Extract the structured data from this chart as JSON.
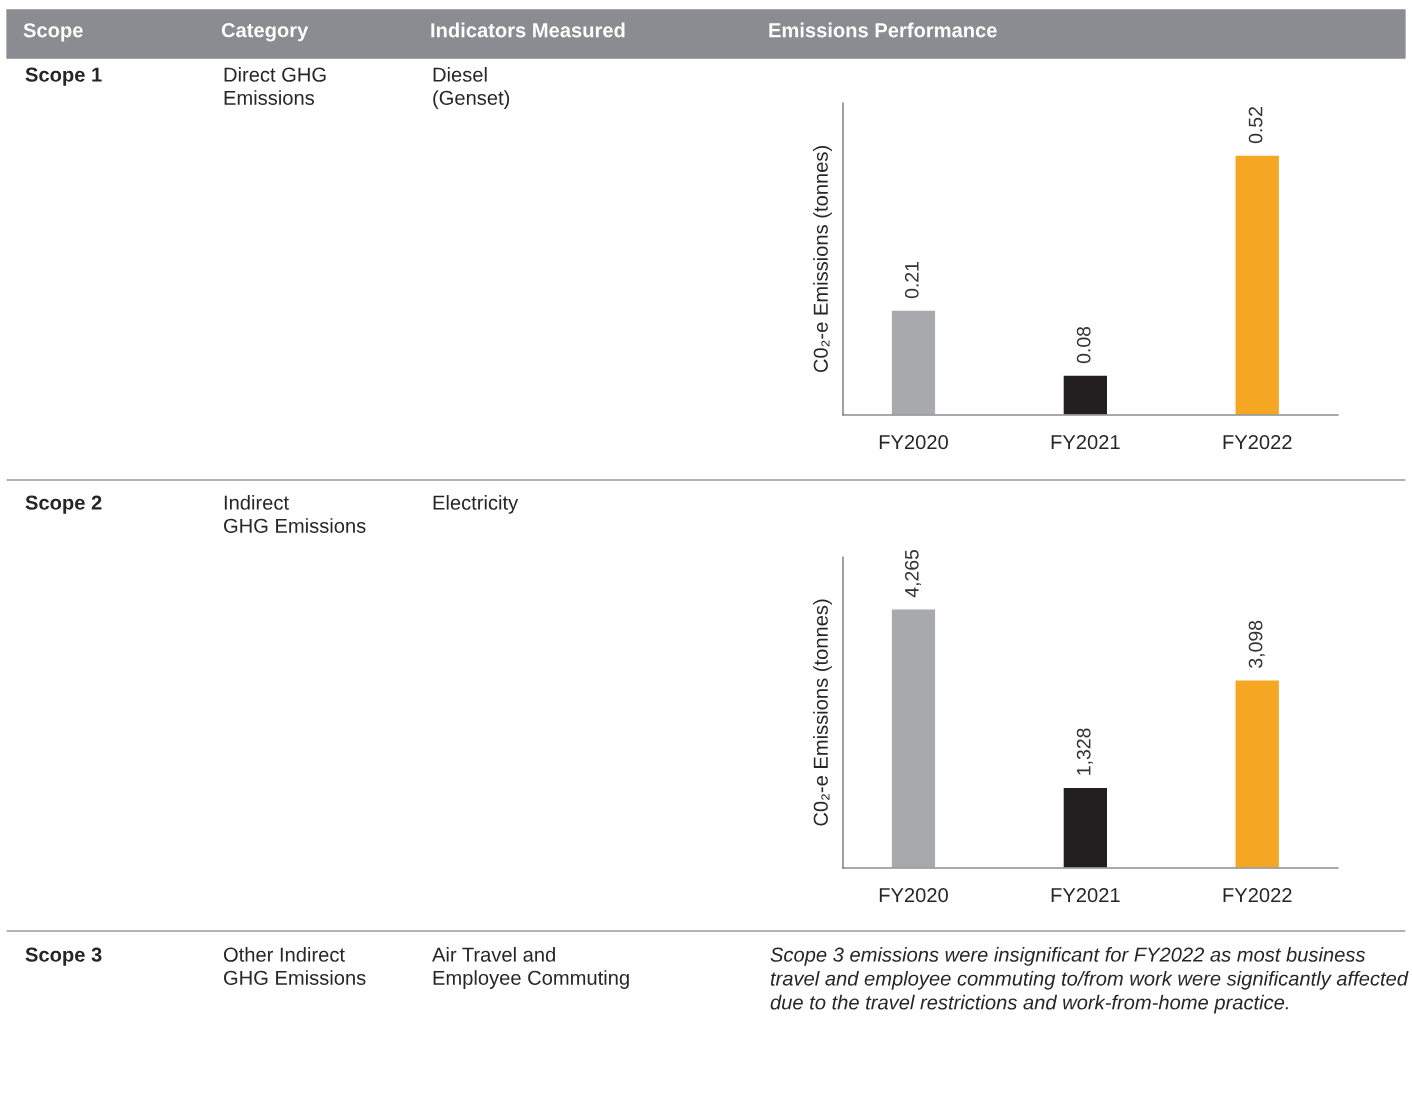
{
  "chart_data": [
    {
      "type": "other",
      "annotations": [
        "Scope",
        "Category",
        "Indicators Measured",
        "Emissions Performance"
      ]
    },
    {
      "type": "bar",
      "annotations": [
        "Scope 1",
        "Direct GHG\nEmissions",
        "Diesel\n(Genset)"
      ],
      "ylabel": "C0₂-e Emissions (tonnes)",
      "categories": [
        "FY2020",
        "FY2021",
        "FY2022"
      ],
      "values": [
        0.21,
        0.08,
        0.52
      ],
      "colors": [
        "#a7a9ac",
        "#231f20",
        "#f5a623"
      ],
      "value_labels": [
        "0.21",
        "0.08",
        "0.52"
      ],
      "tick_labels": "x",
      "grid": false
    },
    {
      "type": "bar",
      "annotations": [
        "Scope 2",
        "Indirect\nGHG Emissions",
        "Electricity"
      ],
      "ylabel": "C0₂-e Emissions (tonnes)",
      "categories": [
        "FY2020",
        "FY2021",
        "FY2022"
      ],
      "values": [
        4265,
        1328,
        3098
      ],
      "colors": [
        "#a7a9ac",
        "#231f20",
        "#f5a623"
      ],
      "value_labels": [
        "4,265",
        "1,328",
        "3,098"
      ],
      "tick_labels": "x",
      "grid": false
    },
    {
      "type": "other",
      "annotations": [
        "Scope 3",
        "Other Indirect\nGHG Emissions",
        "Air Travel and\nEmployee Commuting",
        "Scope 3 emissions were insignificant for FY2022 as most business travel and employee commuting to/from work were significantly affected due to the travel restrictions and work-from-home practice."
      ]
    }
  ]
}
